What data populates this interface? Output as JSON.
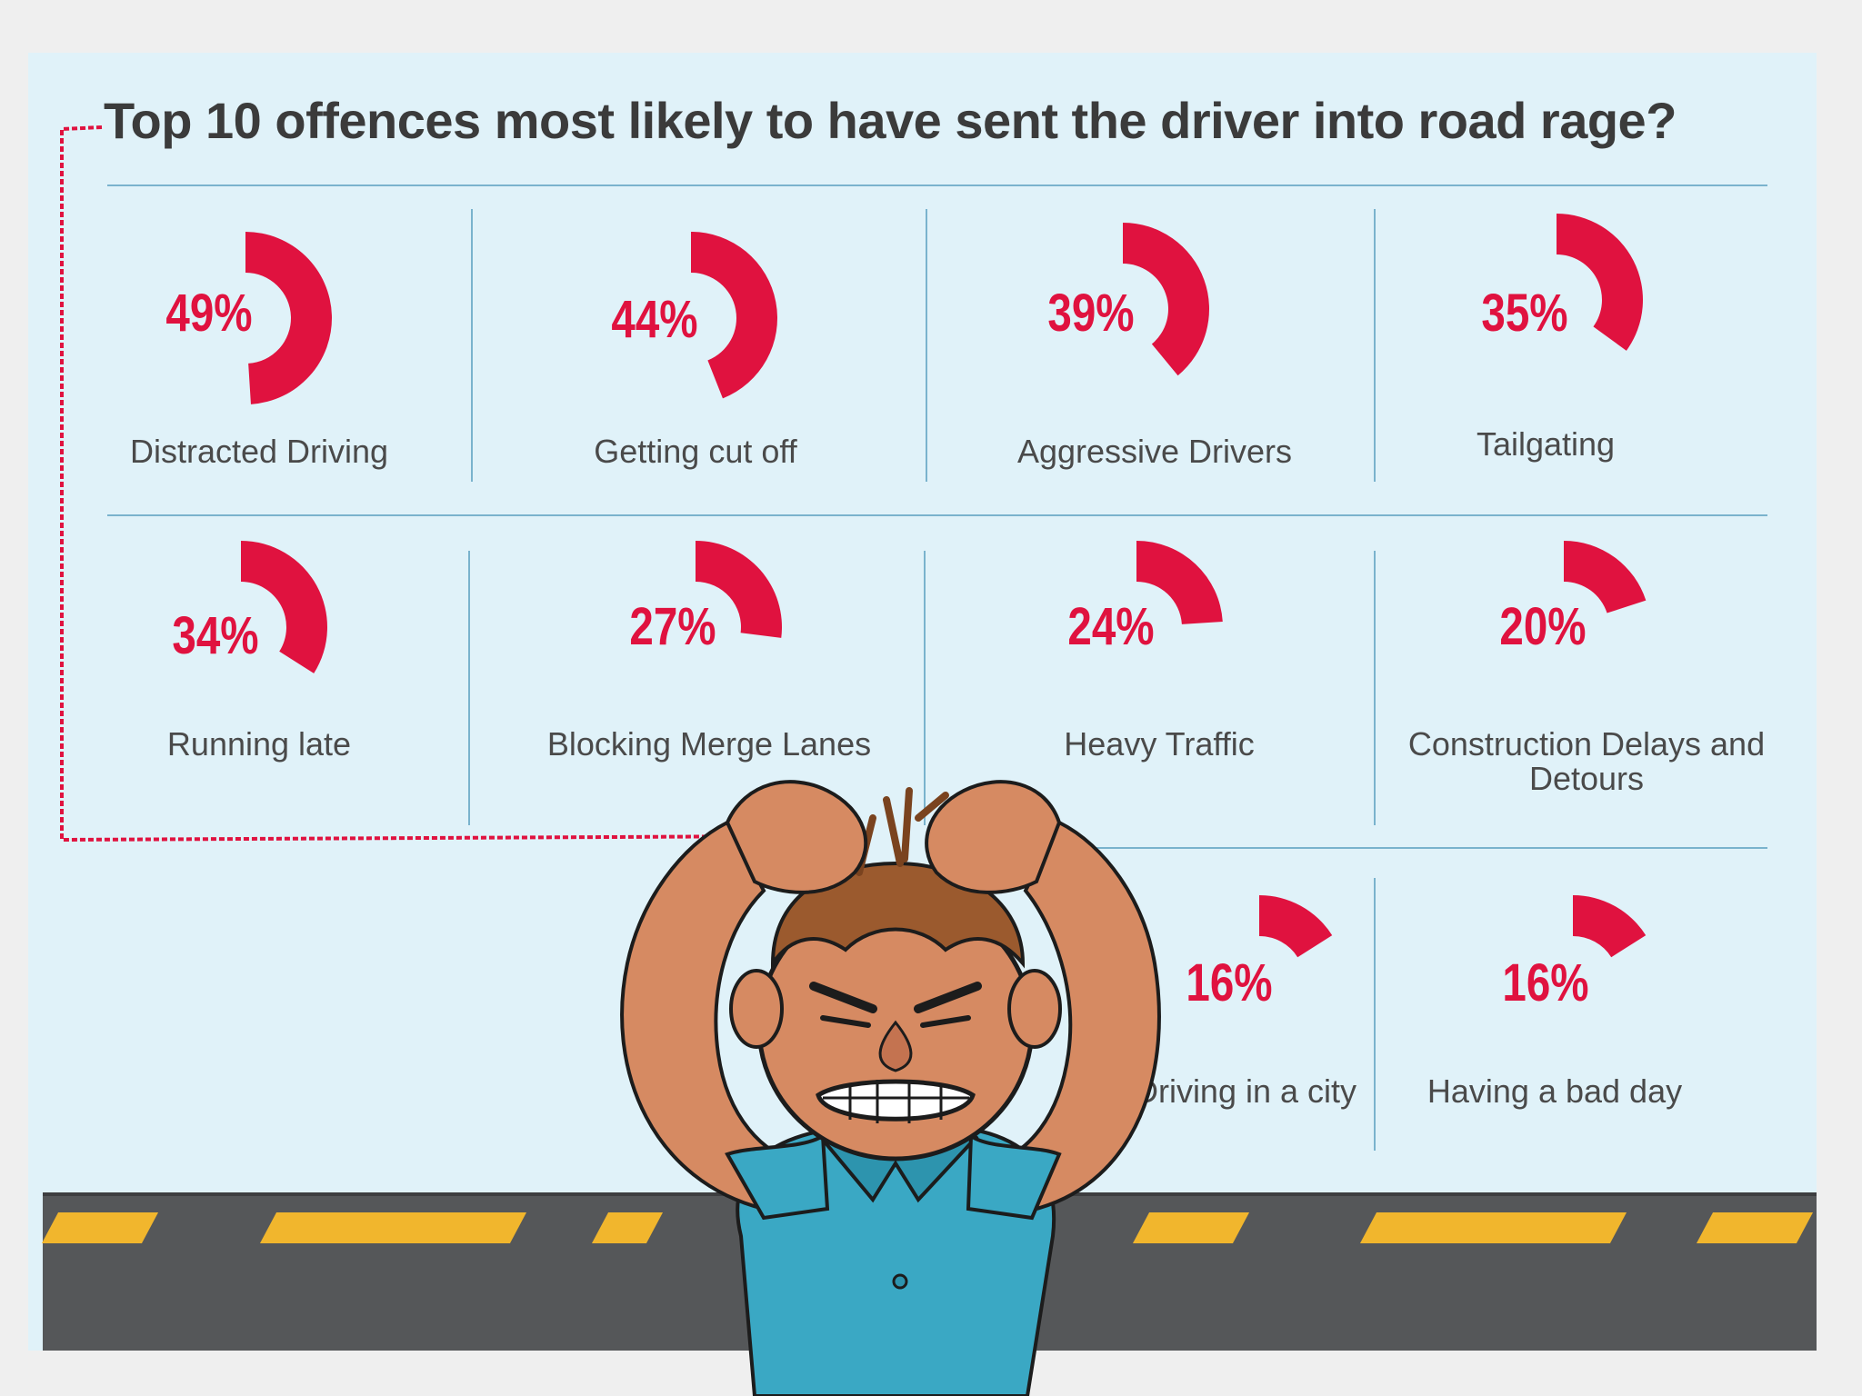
{
  "title": "Top 10 offences most likely to have sent the driver into road rage?",
  "colors": {
    "accent": "#e0123f",
    "panel": "#e0f2f9",
    "road": "#555759",
    "stripe": "#f1b62d"
  },
  "chart_data": {
    "type": "radial-progress",
    "title": "Top 10 offences most likely to have sent the driver into road rage?",
    "unit": "%",
    "items": [
      {
        "label": "Distracted Driving",
        "value": 49,
        "value_label": "49%"
      },
      {
        "label": "Getting cut off",
        "value": 44,
        "value_label": "44%"
      },
      {
        "label": "Aggressive Drivers",
        "value": 39,
        "value_label": "39%"
      },
      {
        "label": "Tailgating",
        "value": 35,
        "value_label": "35%"
      },
      {
        "label": "Running late",
        "value": 34,
        "value_label": "34%"
      },
      {
        "label": "Blocking Merge Lanes",
        "value": 27,
        "value_label": "27%"
      },
      {
        "label": "Heavy Traffic",
        "value": 24,
        "value_label": "24%"
      },
      {
        "label": "Construction Delays and Detours",
        "value": 20,
        "value_label": "20%"
      },
      {
        "label": "Driving in a city",
        "value": 16,
        "value_label": "16%"
      },
      {
        "label": "Having a bad day",
        "value": 16,
        "value_label": "16%"
      }
    ]
  },
  "illustration": {
    "subject": "frustrated-man-illustration",
    "scene": "road"
  }
}
